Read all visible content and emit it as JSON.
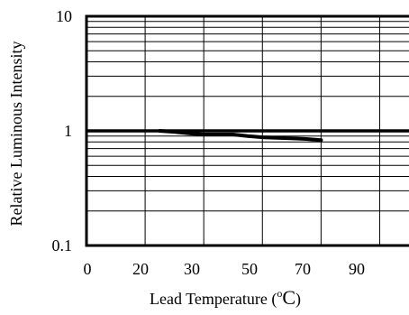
{
  "chart_data": {
    "type": "line",
    "xlabel": "Lead  Temperature (",
    "xlabel_degree": "o",
    "xlabel_unit": "C",
    "xlabel_close": ")",
    "ylabel": "Relative Luminous Intensity",
    "x_scale": "linear",
    "y_scale": "log",
    "ylim": [
      0.1,
      10
    ],
    "x_ticks": [
      {
        "label": "0",
        "value": 0
      },
      {
        "label": "20",
        "value": 20
      },
      {
        "label": "30",
        "value": 30
      },
      {
        "label": "50",
        "value": 50
      },
      {
        "label": "70",
        "value": 70
      },
      {
        "label": "90",
        "value": 90
      }
    ],
    "x_axis_end": 110,
    "y_ticks": [
      {
        "label": "10",
        "value": 10
      },
      {
        "label": "1",
        "value": 1
      },
      {
        "label": "0.1",
        "value": 0.1
      }
    ],
    "grid": true,
    "series": [
      {
        "color": "#000000",
        "x": [
          25,
          30,
          35,
          40,
          45,
          50,
          55,
          60,
          65,
          70,
          75,
          80
        ],
        "y": [
          1.0,
          0.98,
          0.95,
          0.93,
          0.93,
          0.93,
          0.9,
          0.88,
          0.87,
          0.86,
          0.85,
          0.83
        ]
      }
    ]
  }
}
